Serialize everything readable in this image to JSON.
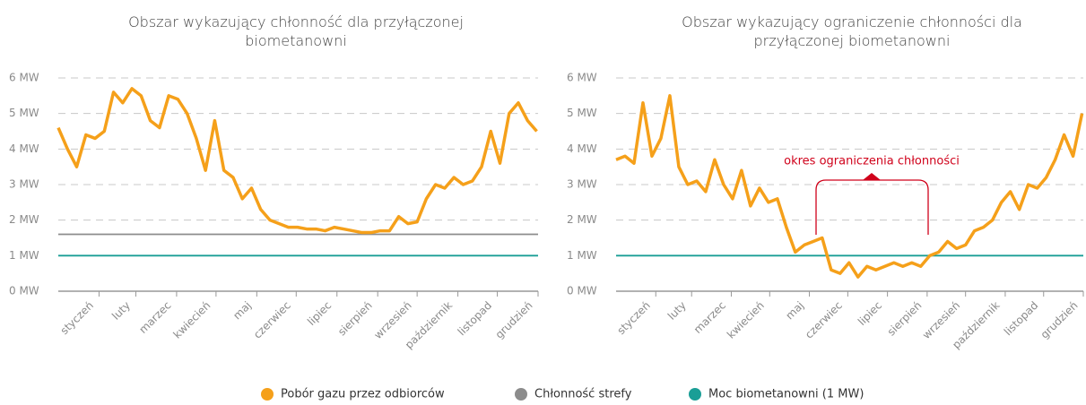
{
  "chart_data": [
    {
      "type": "line",
      "title": "Obszar wykazujący chłonność dla przyłączonej biometanowni",
      "xlim": [
        0,
        365
      ],
      "xticks": [
        {
          "value": 31,
          "label": "styczeń"
        },
        {
          "value": 59,
          "label": "luty"
        },
        {
          "value": 90,
          "label": "marzec"
        },
        {
          "value": 120,
          "label": "kwiecień"
        },
        {
          "value": 151,
          "label": "maj"
        },
        {
          "value": 181,
          "label": "czerwiec"
        },
        {
          "value": 212,
          "label": "lipiec"
        },
        {
          "value": 243,
          "label": "sierpień"
        },
        {
          "value": 273,
          "label": "wrzesień"
        },
        {
          "value": 304,
          "label": "październik"
        },
        {
          "value": 334,
          "label": "listopad"
        },
        {
          "value": 365,
          "label": "grudzień"
        }
      ],
      "ylim": [
        0,
        6
      ],
      "yticks": [
        {
          "value": 0,
          "label": "0 MW"
        },
        {
          "value": 1,
          "label": "1 MW"
        },
        {
          "value": 2,
          "label": "2 MW"
        },
        {
          "value": 3,
          "label": "3 MW"
        },
        {
          "value": 4,
          "label": "4 MW"
        },
        {
          "value": 5,
          "label": "5 MW"
        },
        {
          "value": 6,
          "label": "6 MW"
        }
      ],
      "grid": true,
      "series": [
        {
          "name": "Pobór gazu przez odbiorców",
          "color": "#f5a01a",
          "x": [
            0,
            7,
            14,
            21,
            28,
            35,
            42,
            49,
            56,
            63,
            70,
            77,
            84,
            91,
            98,
            105,
            112,
            119,
            126,
            133,
            140,
            147,
            154,
            161,
            168,
            175,
            182,
            189,
            196,
            203,
            210,
            217,
            224,
            231,
            238,
            245,
            252,
            259,
            266,
            273,
            280,
            287,
            294,
            301,
            308,
            315,
            322,
            329,
            336,
            343,
            350,
            357,
            364
          ],
          "values": [
            4.6,
            4.0,
            3.5,
            4.4,
            4.3,
            4.5,
            5.6,
            5.3,
            5.7,
            5.5,
            4.8,
            4.6,
            5.5,
            5.4,
            5.0,
            4.3,
            3.4,
            4.8,
            3.4,
            3.2,
            2.6,
            2.9,
            2.3,
            2.0,
            1.9,
            1.8,
            1.8,
            1.75,
            1.75,
            1.7,
            1.8,
            1.75,
            1.7,
            1.65,
            1.65,
            1.7,
            1.7,
            2.1,
            1.9,
            1.95,
            2.6,
            3.0,
            2.9,
            3.2,
            3.0,
            3.1,
            3.5,
            4.5,
            3.6,
            5.0,
            5.3,
            4.8,
            4.5
          ]
        },
        {
          "name": "Chłonność strefy",
          "color": "#8c8c8c",
          "x": [
            0,
            365
          ],
          "values": [
            1.6,
            1.6
          ]
        },
        {
          "name": "Moc biometanowni (1 MW)",
          "color": "#1a9e96",
          "x": [
            0,
            365
          ],
          "values": [
            1,
            1
          ]
        }
      ]
    },
    {
      "type": "line",
      "title": "Obszar wykazujący ograniczenie chłonności dla przyłączonej biometanowni",
      "annotation": "okres ograniczenia chłonności",
      "xlim": [
        0,
        365
      ],
      "xticks": [
        {
          "value": 31,
          "label": "styczeń"
        },
        {
          "value": 59,
          "label": "luty"
        },
        {
          "value": 90,
          "label": "marzec"
        },
        {
          "value": 120,
          "label": "kwiecień"
        },
        {
          "value": 151,
          "label": "maj"
        },
        {
          "value": 181,
          "label": "czerwiec"
        },
        {
          "value": 212,
          "label": "lipiec"
        },
        {
          "value": 243,
          "label": "sierpień"
        },
        {
          "value": 273,
          "label": "wrzesień"
        },
        {
          "value": 304,
          "label": "październik"
        },
        {
          "value": 334,
          "label": "listopad"
        },
        {
          "value": 365,
          "label": "grudzień"
        }
      ],
      "ylim": [
        0,
        6
      ],
      "yticks": [
        {
          "value": 0,
          "label": "0 MW"
        },
        {
          "value": 1,
          "label": "1 MW"
        },
        {
          "value": 2,
          "label": "2 MW"
        },
        {
          "value": 3,
          "label": "3 MW"
        },
        {
          "value": 4,
          "label": "4 MW"
        },
        {
          "value": 5,
          "label": "5 MW"
        },
        {
          "value": 6,
          "label": "6 MW"
        }
      ],
      "grid": true,
      "series": [
        {
          "color": "#f5a01a",
          "x": [
            0,
            7,
            14,
            21,
            28,
            35,
            42,
            49,
            56,
            63,
            70,
            77,
            84,
            91,
            98,
            105,
            112,
            119,
            126,
            133,
            140,
            147,
            154,
            161,
            168,
            175,
            182,
            189,
            196,
            203,
            210,
            217,
            224,
            231,
            238,
            245,
            252,
            259,
            266,
            273,
            280,
            287,
            294,
            301,
            308,
            315,
            322,
            329,
            336,
            343,
            350,
            357,
            364
          ],
          "values": [
            3.7,
            3.8,
            3.6,
            5.3,
            3.8,
            4.3,
            5.5,
            3.5,
            3.0,
            3.1,
            2.8,
            3.7,
            3.0,
            2.6,
            3.4,
            2.4,
            2.9,
            2.5,
            2.6,
            1.8,
            1.1,
            1.3,
            1.4,
            1.5,
            0.6,
            0.5,
            0.8,
            0.4,
            0.7,
            0.6,
            0.7,
            0.8,
            0.7,
            0.8,
            0.7,
            1.0,
            1.1,
            1.4,
            1.2,
            1.3,
            1.7,
            1.8,
            2.0,
            2.5,
            2.8,
            2.3,
            3.0,
            2.9,
            3.2,
            3.7,
            4.4,
            3.8,
            5.0
          ]
        },
        {
          "color": "#1a9e96",
          "x": [
            0,
            365
          ],
          "values": [
            1,
            1
          ]
        }
      ]
    }
  ]
}
